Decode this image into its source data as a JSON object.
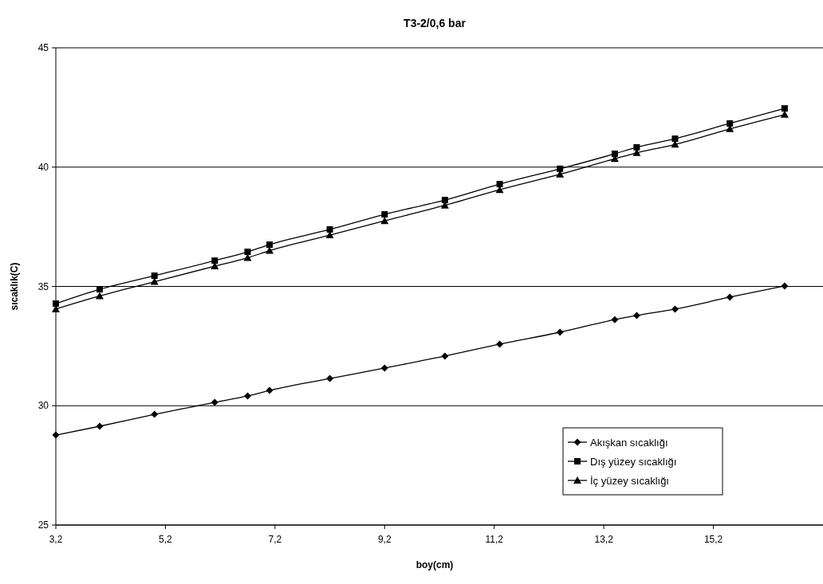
{
  "chart_data": {
    "type": "line",
    "title": "T3-2/0,6 bar",
    "xlabel": "boy(cm)",
    "ylabel": "sıcaklık(C)",
    "x": [
      3.2,
      4.0,
      5.0,
      6.1,
      6.7,
      7.1,
      8.2,
      9.2,
      10.3,
      11.3,
      12.4,
      13.4,
      13.8,
      14.5,
      15.5,
      16.5
    ],
    "xlim": [
      3.2,
      17.2
    ],
    "xticks": [
      {
        "value": 3.2,
        "label": "3,2"
      },
      {
        "value": 5.2,
        "label": "5,2"
      },
      {
        "value": 7.2,
        "label": "7,2"
      },
      {
        "value": 9.2,
        "label": "9,2"
      },
      {
        "value": 11.2,
        "label": "11,2"
      },
      {
        "value": 13.2,
        "label": "13,2"
      },
      {
        "value": 15.2,
        "label": "15,2"
      }
    ],
    "ylim": [
      25,
      45
    ],
    "yticks": [
      25,
      30,
      35,
      40,
      45
    ],
    "grid": "y",
    "legend": "bottom right",
    "series": [
      {
        "name": "Akışkan sıcaklığı",
        "color": "#000000",
        "marker": "diamond",
        "values": [
          28.77,
          29.14,
          29.64,
          30.14,
          30.41,
          30.64,
          31.14,
          31.58,
          32.08,
          32.58,
          33.08,
          33.61,
          33.78,
          34.05,
          34.55,
          35.02
        ]
      },
      {
        "name": "Dış yüzey sıcaklığı",
        "color": "#000000",
        "marker": "square",
        "values": [
          34.28,
          34.88,
          35.45,
          36.08,
          36.45,
          36.75,
          37.39,
          38.02,
          38.62,
          39.29,
          39.93,
          40.56,
          40.83,
          41.19,
          41.83,
          42.46
        ]
      },
      {
        "name": "İç yüzey sıcaklığı",
        "color": "#000000",
        "marker": "triangle",
        "values": [
          34.05,
          34.6,
          35.2,
          35.85,
          36.2,
          36.5,
          37.15,
          37.75,
          38.4,
          39.05,
          39.7,
          40.35,
          40.6,
          40.95,
          41.6,
          42.2
        ]
      }
    ]
  }
}
